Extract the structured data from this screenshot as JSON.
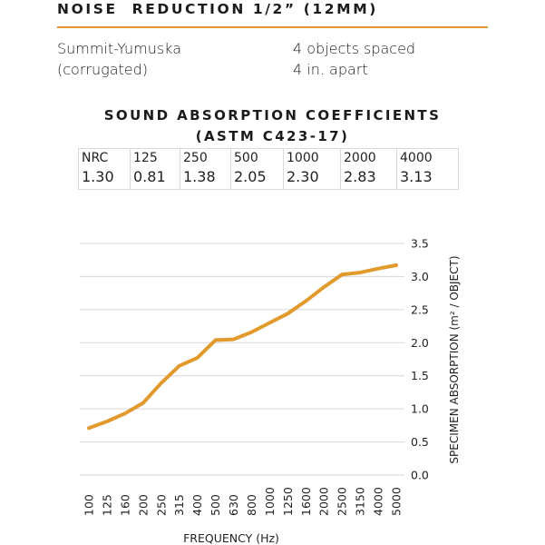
{
  "header": {
    "title": "NOISE  REDUCTION 1/2” (12MM)",
    "accent_color": "#e39a2d"
  },
  "product": {
    "name_lines": [
      "Summit-Yumuska",
      "(corrugated)"
    ],
    "spacing_lines": [
      "4 objects spaced",
      "4 in. apart"
    ]
  },
  "table": {
    "title_lines": [
      "SOUND ABSORPTION COEFFICIENTS",
      "(ASTM C423-17)"
    ],
    "headers": [
      "NRC",
      "125",
      "250",
      "500",
      "1000",
      "2000",
      "4000"
    ],
    "values": [
      "1.30",
      "0.81",
      "1.38",
      "2.05",
      "2.30",
      "2.83",
      "3.13"
    ]
  },
  "chart_data": {
    "type": "line",
    "x": [
      "100",
      "125",
      "160",
      "200",
      "250",
      "315",
      "400",
      "500",
      "630",
      "800",
      "1000",
      "1250",
      "1600",
      "2000",
      "2500",
      "3150",
      "4000",
      "5000"
    ],
    "series": [
      {
        "values": [
          0.71,
          0.81,
          0.93,
          1.09,
          1.39,
          1.65,
          1.77,
          2.04,
          2.05,
          2.16,
          2.3,
          2.44,
          2.63,
          2.84,
          3.03,
          3.06,
          3.12,
          3.17
        ],
        "color": "#e39a2d"
      }
    ],
    "xlabel": "FREQUENCY (Hz)",
    "ylabel": "SPECIMEN ABSORPTION (m² / OBJECT)",
    "yticks": [
      "0.0",
      "0.5",
      "1.0",
      "1.5",
      "2.0",
      "2.5",
      "3.0",
      "3.5"
    ],
    "ylim": [
      0,
      3.5
    ],
    "grid": "horizontal",
    "y_axis_side": "right"
  }
}
